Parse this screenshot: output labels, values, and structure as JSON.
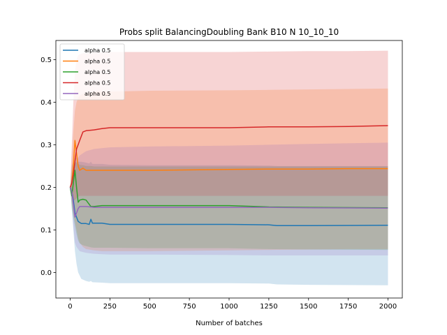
{
  "chart_data": {
    "type": "line",
    "title": "Probs split BalancingDoubling Bank B10 N 10_10_10",
    "xlabel": "Number of batches",
    "ylabel": "",
    "xlim": [
      -90,
      2090
    ],
    "ylim": [
      -0.06,
      0.545
    ],
    "x_ticks": [
      0,
      250,
      500,
      750,
      1000,
      1250,
      1500,
      1750,
      2000
    ],
    "y_ticks": [
      0.0,
      0.1,
      0.2,
      0.3,
      0.4,
      0.5
    ],
    "y_tick_labels": [
      "0.0",
      "0.1",
      "0.2",
      "0.3",
      "0.4",
      "0.5"
    ],
    "grid": false,
    "legend_position": "top-left",
    "series": [
      {
        "name": "alpha 0.5",
        "color": "#1f77b4",
        "x": [
          0,
          10,
          20,
          30,
          40,
          50,
          70,
          100,
          120,
          130,
          140,
          200,
          250,
          500,
          1000,
          1250,
          1300,
          1500,
          2000
        ],
        "values": [
          0.2,
          0.19,
          0.17,
          0.14,
          0.13,
          0.12,
          0.115,
          0.115,
          0.113,
          0.125,
          0.116,
          0.116,
          0.113,
          0.113,
          0.113,
          0.112,
          0.11,
          0.11,
          0.111
        ],
        "lower": [
          0.2,
          0.15,
          0.1,
          0.05,
          0.02,
          0.0,
          -0.015,
          -0.02,
          -0.022,
          -0.02,
          -0.023,
          -0.024,
          -0.025,
          -0.025,
          -0.025,
          -0.026,
          -0.028,
          -0.029,
          -0.03
        ],
        "upper": [
          0.2,
          0.25,
          0.26,
          0.27,
          0.27,
          0.26,
          0.26,
          0.258,
          0.256,
          0.26,
          0.255,
          0.255,
          0.253,
          0.252,
          0.252,
          0.251,
          0.25,
          0.25,
          0.25
        ]
      },
      {
        "name": "alpha 0.5",
        "color": "#ff7f0e",
        "x": [
          0,
          10,
          20,
          30,
          40,
          50,
          60,
          80,
          100,
          150,
          200,
          250,
          500,
          1000,
          1250,
          1500,
          1750,
          2000
        ],
        "values": [
          0.2,
          0.21,
          0.25,
          0.31,
          0.28,
          0.25,
          0.24,
          0.245,
          0.24,
          0.24,
          0.24,
          0.24,
          0.24,
          0.242,
          0.243,
          0.243,
          0.244,
          0.244
        ],
        "lower": [
          0.2,
          0.17,
          0.14,
          0.12,
          0.1,
          0.08,
          0.07,
          0.06,
          0.055,
          0.052,
          0.05,
          0.05,
          0.05,
          0.052,
          0.053,
          0.054,
          0.055,
          0.055
        ],
        "upper": [
          0.2,
          0.27,
          0.33,
          0.38,
          0.4,
          0.41,
          0.415,
          0.42,
          0.42,
          0.425,
          0.425,
          0.425,
          0.427,
          0.428,
          0.429,
          0.43,
          0.431,
          0.432
        ]
      },
      {
        "name": "alpha 0.5",
        "color": "#2ca02c",
        "x": [
          0,
          10,
          20,
          30,
          40,
          50,
          60,
          80,
          100,
          120,
          130,
          150,
          200,
          250,
          500,
          1000,
          1250,
          1500,
          2000
        ],
        "values": [
          0.2,
          0.18,
          0.21,
          0.24,
          0.2,
          0.165,
          0.17,
          0.172,
          0.17,
          0.16,
          0.155,
          0.155,
          0.157,
          0.157,
          0.157,
          0.157,
          0.154,
          0.153,
          0.152
        ],
        "lower": [
          0.2,
          0.15,
          0.13,
          0.11,
          0.09,
          0.075,
          0.068,
          0.064,
          0.062,
          0.06,
          0.059,
          0.058,
          0.058,
          0.058,
          0.057,
          0.057,
          0.055,
          0.054,
          0.053
        ],
        "upper": [
          0.2,
          0.23,
          0.25,
          0.26,
          0.258,
          0.255,
          0.253,
          0.252,
          0.25,
          0.25,
          0.25,
          0.249,
          0.249,
          0.249,
          0.249,
          0.249,
          0.249,
          0.249,
          0.249
        ]
      },
      {
        "name": "alpha 0.5",
        "color": "#d62728",
        "x": [
          0,
          10,
          20,
          30,
          40,
          50,
          60,
          70,
          80,
          100,
          150,
          200,
          250,
          500,
          1000,
          1250,
          1500,
          1750,
          2000
        ],
        "values": [
          0.2,
          0.21,
          0.23,
          0.26,
          0.29,
          0.3,
          0.31,
          0.32,
          0.33,
          0.333,
          0.335,
          0.338,
          0.34,
          0.34,
          0.34,
          0.342,
          0.342,
          0.343,
          0.345
        ],
        "lower": [
          0.2,
          0.18,
          0.17,
          0.17,
          0.175,
          0.178,
          0.18,
          0.18,
          0.18,
          0.18,
          0.18,
          0.18,
          0.18,
          0.18,
          0.18,
          0.18,
          0.18,
          0.18,
          0.18
        ],
        "upper": [
          0.2,
          0.3,
          0.4,
          0.47,
          0.5,
          0.51,
          0.512,
          0.514,
          0.515,
          0.516,
          0.517,
          0.517,
          0.518,
          0.518,
          0.518,
          0.519,
          0.52,
          0.52,
          0.521
        ]
      },
      {
        "name": "alpha 0.5",
        "color": "#9467bd",
        "x": [
          0,
          10,
          20,
          30,
          40,
          50,
          60,
          80,
          100,
          150,
          200,
          250,
          500,
          1000,
          1250,
          1500,
          2000
        ],
        "values": [
          0.2,
          0.19,
          0.16,
          0.13,
          0.14,
          0.15,
          0.155,
          0.155,
          0.155,
          0.153,
          0.153,
          0.153,
          0.153,
          0.153,
          0.153,
          0.152,
          0.151
        ],
        "lower": [
          0.2,
          0.16,
          0.11,
          0.07,
          0.06,
          0.055,
          0.05,
          0.048,
          0.046,
          0.044,
          0.043,
          0.042,
          0.042,
          0.041,
          0.04,
          0.04,
          0.04
        ],
        "upper": [
          0.2,
          0.22,
          0.24,
          0.25,
          0.262,
          0.27,
          0.275,
          0.28,
          0.285,
          0.29,
          0.292,
          0.294,
          0.296,
          0.298,
          0.3,
          0.302,
          0.305
        ]
      }
    ]
  }
}
